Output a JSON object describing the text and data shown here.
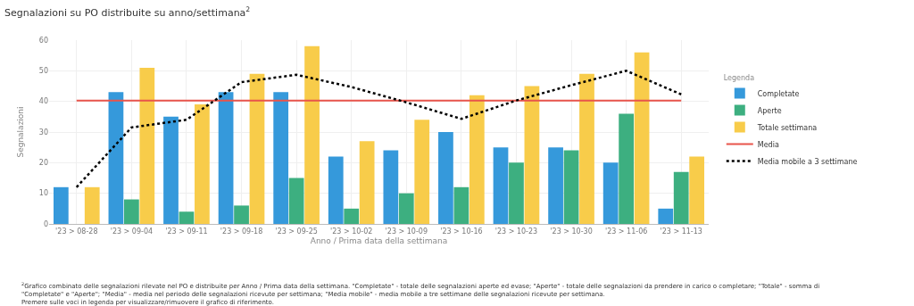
{
  "chart_data": {
    "type": "bar",
    "title": "Segnalazioni su PO distribuite su anno/settimana$^{2}$",
    "xlabel": "Anno / Prima data della settimana",
    "ylabel": "Segnalazioni",
    "legend_title": "Legenda",
    "categories": [
      "'23 > 08-28",
      "'23 > 09-04",
      "'23 > 09-11",
      "'23 > 09-18",
      "'23 > 09-25",
      "'23 > 10-02",
      "'23 > 10-09",
      "'23 > 10-16",
      "'23 > 10-23",
      "'23 > 10-30",
      "'23 > 11-06",
      "'23 > 11-13"
    ],
    "series": [
      {
        "name": "Completate",
        "color": "#3599db",
        "values": [
          12,
          43,
          35,
          43,
          43,
          22,
          24,
          30,
          25,
          25,
          20,
          5
        ]
      },
      {
        "name": "Aperte",
        "color": "#3daf80",
        "values": [
          0,
          8,
          4,
          6,
          15,
          5,
          10,
          12,
          20,
          24,
          36,
          17
        ]
      },
      {
        "name": "Totale settimana",
        "color": "#f8cc4a",
        "values": [
          12,
          51,
          39,
          49,
          58,
          27,
          34,
          42,
          45,
          49,
          56,
          22
        ]
      },
      {
        "name": "Media",
        "type": "line",
        "color": "#e8544b",
        "line_style": "solid",
        "values": [
          40.3,
          40.3,
          40.3,
          40.3,
          40.3,
          40.3,
          40.3,
          40.3,
          40.3,
          40.3,
          40.3,
          40.3
        ]
      },
      {
        "name": "Media mobile a 3 settimane",
        "type": "line",
        "color": "#000000",
        "line_style": "dotted",
        "values": [
          12,
          31.5,
          34,
          46.3,
          48.7,
          44.7,
          39.7,
          34.3,
          40.3,
          45.3,
          50,
          42.3
        ]
      }
    ],
    "ylim": [
      0,
      60
    ],
    "yticks": [
      0,
      10,
      20,
      30,
      40,
      50,
      60
    ],
    "grid": true,
    "legend": "right",
    "annotations": [
      "$^{2}$Grafico combinato delle segnalazioni rilevate nel PO e distribuite per Anno / Prima data della settimana. \"Completate\" - totale delle segnalazioni aperte ed evase; \"Aperte\" - totale delle segnalazioni da prendere in carico o completare; \"Totale\" - somma di\n\"Completate\" e \"Aperte\"; \"Media\" - media nel periodo delle segnalazioni ricevute per settimana; \"Media mobile\" - media mobile a tre settimane delle segnalazioni ricevute per settimana.\nPremere sulle voci in legenda per visualizzare/rimuovere il grafico di riferimento."
    ]
  }
}
